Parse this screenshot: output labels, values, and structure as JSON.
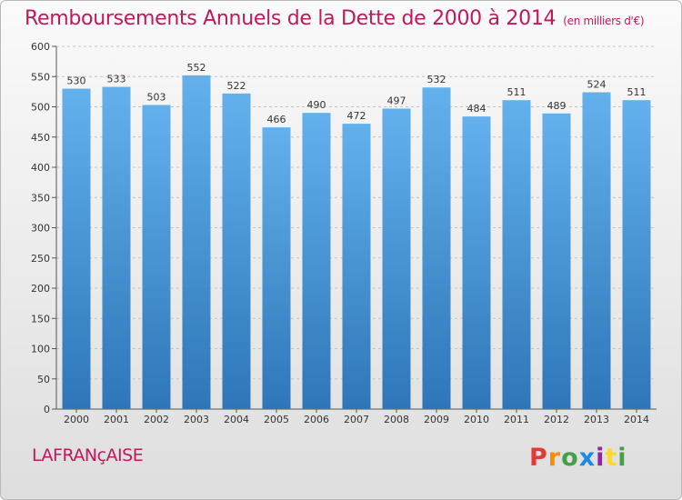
{
  "chart_data": {
    "type": "bar",
    "title": "Remboursements Annuels de la Dette de 2000 à 2014",
    "subtitle": "(en milliers d'€)",
    "categories": [
      "2000",
      "2001",
      "2002",
      "2003",
      "2004",
      "2005",
      "2006",
      "2007",
      "2008",
      "2009",
      "2010",
      "2011",
      "2012",
      "2013",
      "2014"
    ],
    "values": [
      530,
      533,
      503,
      552,
      522,
      466,
      490,
      472,
      497,
      532,
      484,
      511,
      489,
      524,
      511
    ],
    "ylim": [
      0,
      600
    ],
    "yticks": [
      0,
      50,
      100,
      150,
      200,
      250,
      300,
      350,
      400,
      450,
      500,
      550,
      600
    ],
    "grid": true,
    "bar_color_top": "#62b1ed",
    "bar_color_bottom": "#2e76b8"
  },
  "footer": {
    "commune": "LAFRANçAISE",
    "logo_letters": [
      "P",
      "r",
      "o",
      "x",
      "i",
      "t",
      "i"
    ],
    "logo_colors": [
      "#e53935",
      "#fb8c00",
      "#43a047",
      "#1e88e5",
      "#8e24aa",
      "#fdd835",
      "#43a047"
    ]
  }
}
